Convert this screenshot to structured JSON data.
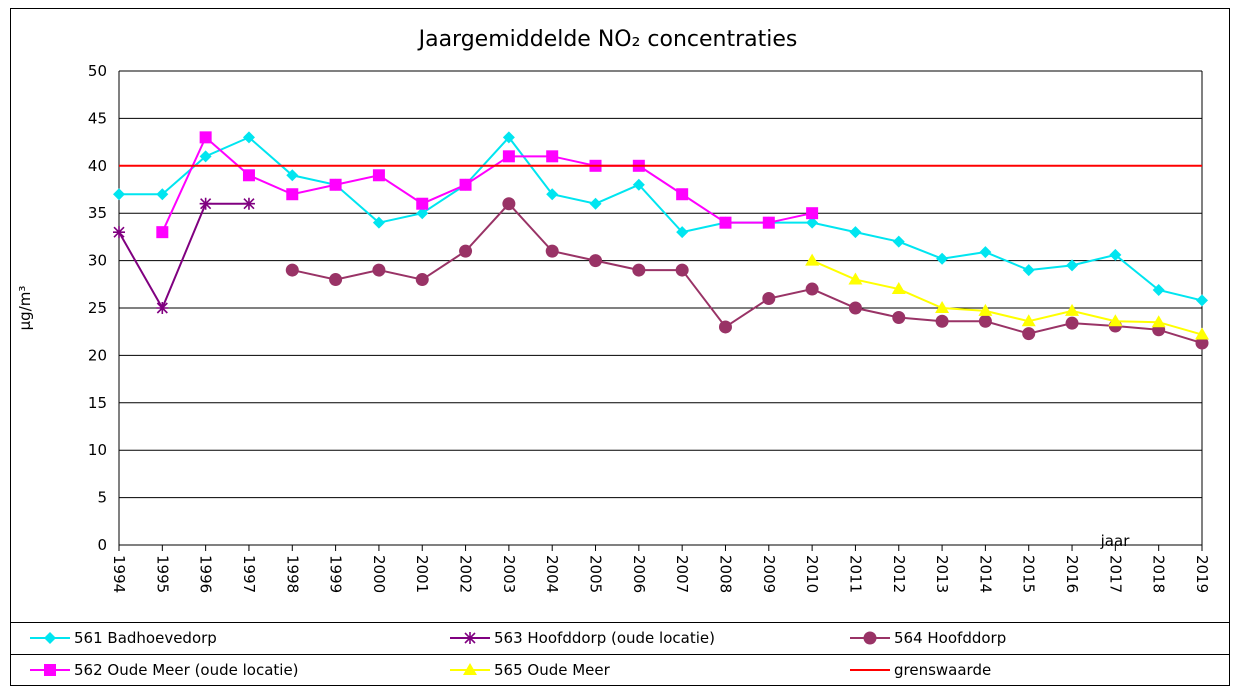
{
  "chart_data": {
    "type": "line",
    "title": "Jaargemiddelde NO₂ concentraties",
    "ylabel": "µg/m³",
    "xlabel": "jaar",
    "categories": [
      "1994",
      "1995",
      "1996",
      "1997",
      "1998",
      "1999",
      "2000",
      "2001",
      "2002",
      "2003",
      "2004",
      "2005",
      "2006",
      "2007",
      "2008",
      "2009",
      "2010",
      "2011",
      "2012",
      "2013",
      "2014",
      "2015",
      "2016",
      "2017",
      "2018",
      "2019"
    ],
    "ylim": [
      0,
      50
    ],
    "yticks": [
      0,
      5,
      10,
      15,
      20,
      25,
      30,
      35,
      40,
      45,
      50
    ],
    "grid": true,
    "series": [
      {
        "name": "561 Badhoevedorp",
        "color": "#00e5f0",
        "marker": "diamond",
        "values": [
          37,
          37,
          41,
          43,
          39,
          38,
          34,
          35,
          38,
          43,
          37,
          36,
          38,
          33,
          34,
          34,
          34,
          33,
          32,
          30.2,
          30.9,
          29,
          29.5,
          30.6,
          26.9,
          25.8
        ]
      },
      {
        "name": "563 Hoofddorp (oude locatie)",
        "color": "#800080",
        "marker": "star",
        "values": [
          33,
          25,
          36,
          36,
          null,
          null,
          null,
          null,
          null,
          null,
          null,
          null,
          null,
          null,
          null,
          null,
          null,
          null,
          null,
          null,
          null,
          null,
          null,
          null,
          null,
          null
        ]
      },
      {
        "name": "564 Hoofddorp",
        "color": "#993366",
        "marker": "circle",
        "values": [
          null,
          null,
          null,
          null,
          29,
          28,
          29,
          28,
          31,
          36,
          31,
          30,
          29,
          29,
          23,
          26,
          27,
          25,
          24,
          23.6,
          23.6,
          22.3,
          23.4,
          23.1,
          22.7,
          21.3
        ]
      },
      {
        "name": "562 Oude Meer (oude locatie)",
        "color": "#ff00ff",
        "marker": "square",
        "values": [
          null,
          33,
          43,
          39,
          37,
          38,
          39,
          36,
          38,
          41,
          41,
          40,
          40,
          37,
          34,
          34,
          35,
          null,
          null,
          null,
          null,
          null,
          null,
          null,
          null,
          null
        ]
      },
      {
        "name": "565 Oude Meer",
        "color": "#ffff00",
        "marker": "triangle",
        "values": [
          null,
          null,
          null,
          null,
          null,
          null,
          null,
          null,
          null,
          null,
          null,
          null,
          null,
          null,
          null,
          null,
          30,
          28,
          27,
          25,
          24.7,
          23.6,
          24.7,
          23.6,
          23.5,
          22.2
        ]
      },
      {
        "name": "grenswaarde",
        "color": "#ff0000",
        "marker": "none",
        "values": [
          40,
          40,
          40,
          40,
          40,
          40,
          40,
          40,
          40,
          40,
          40,
          40,
          40,
          40,
          40,
          40,
          40,
          40,
          40,
          40,
          40,
          40,
          40,
          40,
          40,
          40
        ]
      }
    ]
  }
}
